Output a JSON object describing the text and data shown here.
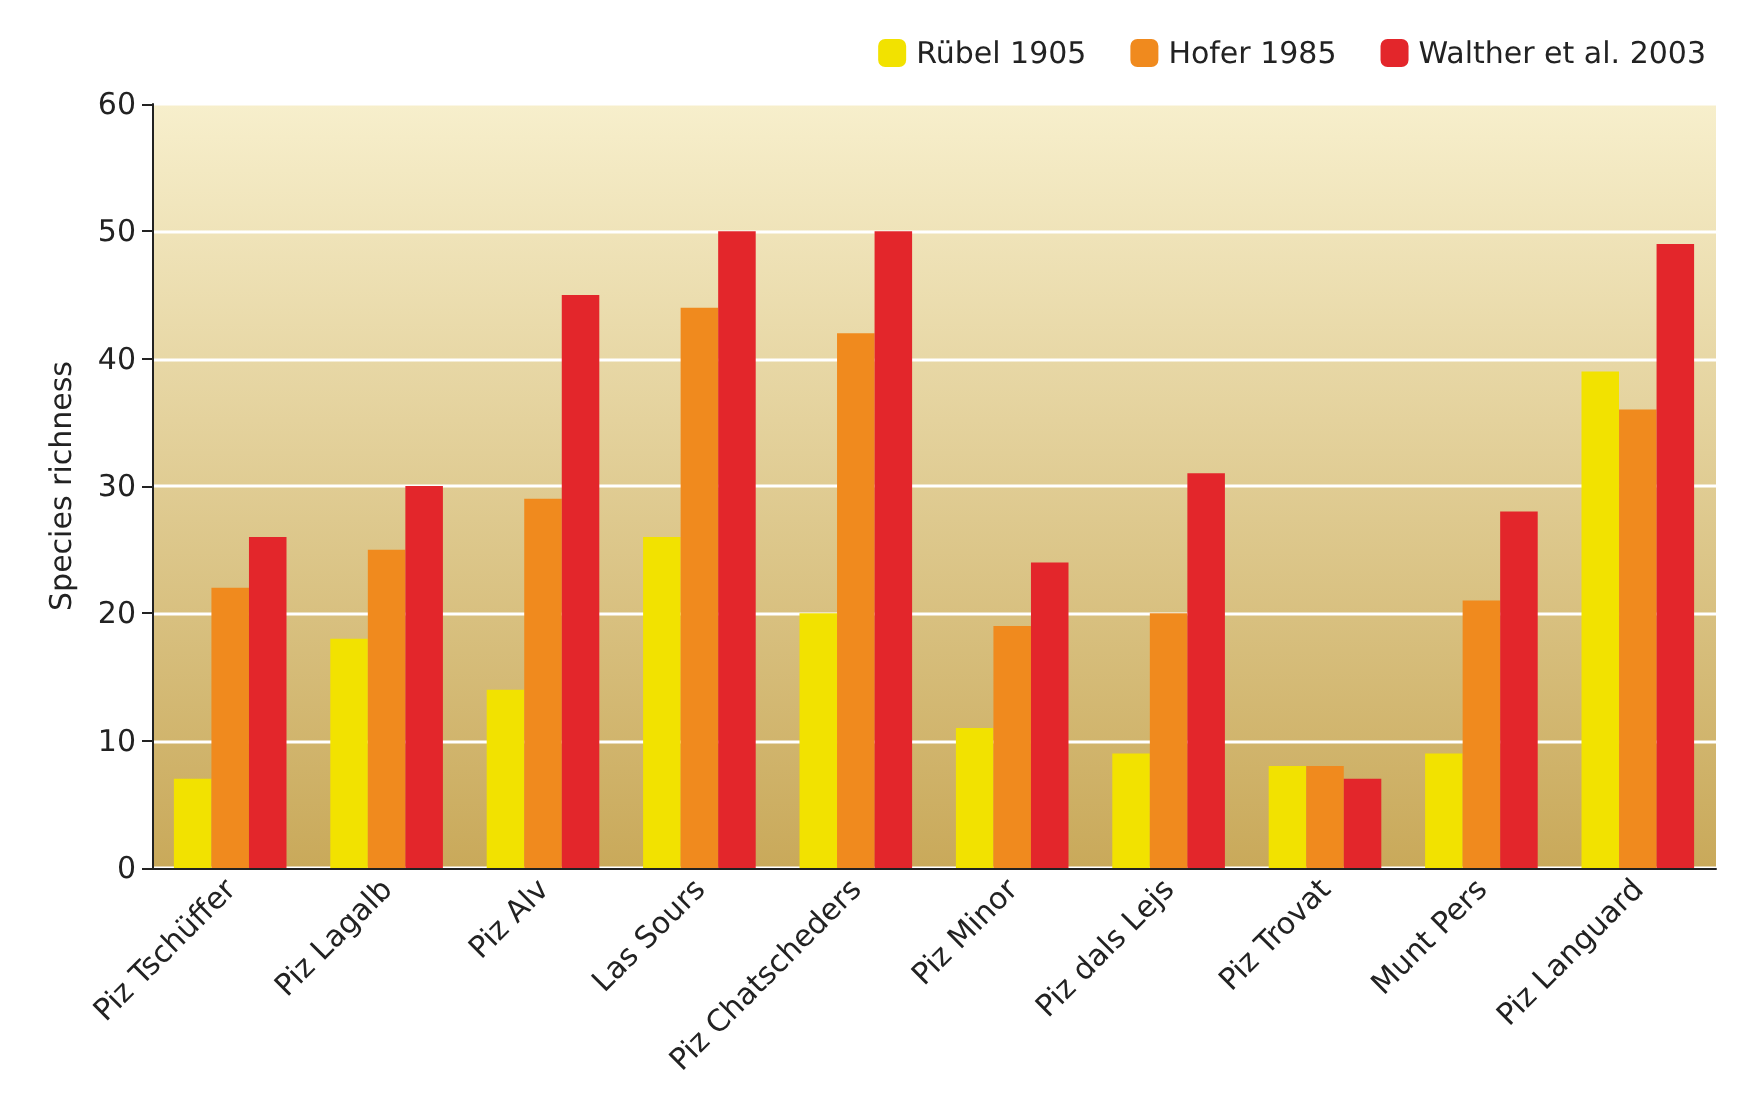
{
  "chart_data": {
    "type": "bar",
    "ylabel": "Species richness",
    "categories": [
      "Piz Tschüffer",
      "Piz Lagalb",
      "Piz Alv",
      "Las Sours",
      "Piz Chatscheders",
      "Piz Minor",
      "Piz dals Lejs",
      "Piz Trovat",
      "Munt Pers",
      "Piz Languard"
    ],
    "series": [
      {
        "name": "Rübel 1905",
        "color": "#f2e200",
        "values": [
          7,
          18,
          14,
          26,
          20,
          11,
          9,
          8,
          9,
          39
        ]
      },
      {
        "name": "Hofer 1985",
        "color": "#f08a1e",
        "values": [
          22,
          25,
          29,
          44,
          42,
          19,
          20,
          8,
          21,
          36
        ]
      },
      {
        "name": "Walther et al. 2003",
        "color": "#e3262b",
        "values": [
          26,
          30,
          45,
          50,
          50,
          24,
          31,
          7,
          28,
          49
        ]
      }
    ],
    "ylim": [
      0,
      60
    ],
    "yticks": [
      0,
      10,
      20,
      30,
      40,
      50,
      60
    ],
    "grid": "y",
    "legend": "top right"
  }
}
